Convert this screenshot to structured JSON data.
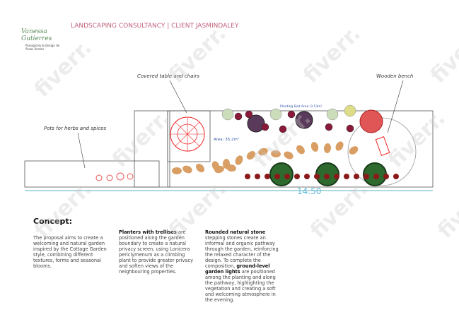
{
  "header": {
    "title": "LANDSCAPING CONSULTANCY | CLIENT JASMINDALEY",
    "logo_name": "Vanessa Gutierres",
    "logo_tagline": "Paisagismo & Design de Áreas Verdes"
  },
  "plan": {
    "labels": {
      "table": "Covered table and chairs",
      "bench": "Wooden bench",
      "pots": "Pots for herbs and spices",
      "bed_area": "Planting Bed Area: 9.53m²",
      "area": "Area: 35.2m²",
      "length": "14.50"
    }
  },
  "concept": {
    "title": "Concept:",
    "intro": "The proposal aims to create a welcoming and natural garden inspired by the Cottage Garden style, combining different textures, forms and seasonal blooms.",
    "col2": {
      "bold": "Planters with trellises",
      "text": " are positioned along the garden boundary to create a natural privacy screen, using Lonicera periclymenum as a climbing plant to provide greater privacy and soften views of the neighbouring properties."
    },
    "col3": {
      "bold1": "Rounded natural stone",
      "text1": " stepping stones create an informal and organic pathway through the garden, reinforcing the relaxed character of the design. To complete the composition, ",
      "bold2": "ground-level garden lights",
      "text2": " are positioned among the planting and along the pathway, highlighting the vegetation and creating a soft and welcoming atmosphere in the evening."
    }
  },
  "watermark": "fiverr."
}
